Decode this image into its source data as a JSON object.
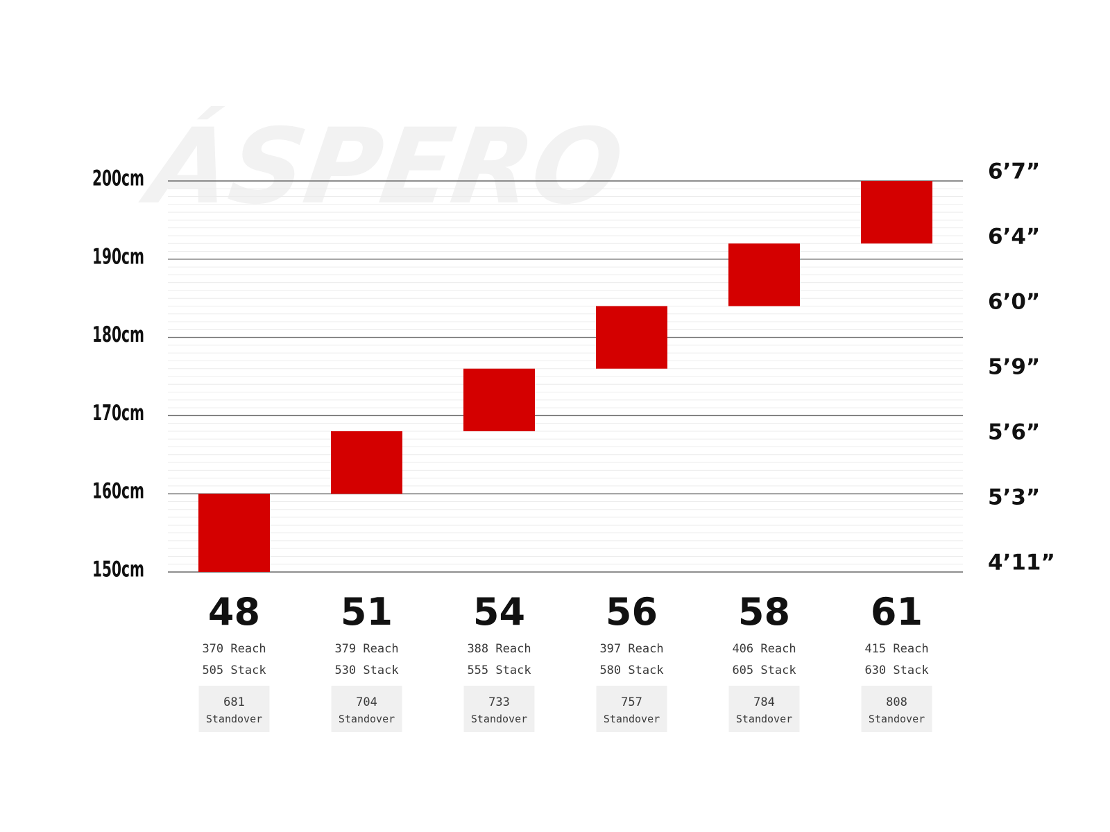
{
  "chart_data": {
    "type": "bar",
    "watermark": "ÁSPERO",
    "y_unit": "cm",
    "ylim": [
      150,
      200
    ],
    "y_ticks_left": [
      "150cm",
      "160cm",
      "170cm",
      "180cm",
      "190cm",
      "200cm"
    ],
    "y_ticks_right": [
      "4’11”",
      "5’3”",
      "5’6”",
      "5’9”",
      "6’0”",
      "6’4”",
      "6’7”"
    ],
    "categories": [
      "48",
      "51",
      "54",
      "56",
      "58",
      "61"
    ],
    "series": [
      {
        "values": [
          [
            150,
            160
          ],
          [
            160,
            168
          ],
          [
            168,
            176
          ],
          [
            176,
            184
          ],
          [
            184,
            192
          ],
          [
            192,
            200
          ]
        ]
      }
    ],
    "sizes": [
      {
        "size": "48",
        "reach": "370 Reach",
        "stack": "505 Stack",
        "standover_value": "681",
        "standover_label": "Standover"
      },
      {
        "size": "51",
        "reach": "379 Reach",
        "stack": "530 Stack",
        "standover_value": "704",
        "standover_label": "Standover"
      },
      {
        "size": "54",
        "reach": "388 Reach",
        "stack": "555 Stack",
        "standover_value": "733",
        "standover_label": "Standover"
      },
      {
        "size": "56",
        "reach": "397 Reach",
        "stack": "580 Stack",
        "standover_value": "757",
        "standover_label": "Standover"
      },
      {
        "size": "58",
        "reach": "406 Reach",
        "stack": "605 Stack",
        "standover_value": "784",
        "standover_label": "Standover"
      },
      {
        "size": "61",
        "reach": "415 Reach",
        "stack": "630 Stack",
        "standover_value": "808",
        "standover_label": "Standover"
      }
    ],
    "bar_color": "#d40000",
    "grid": true,
    "legend": "none"
  }
}
